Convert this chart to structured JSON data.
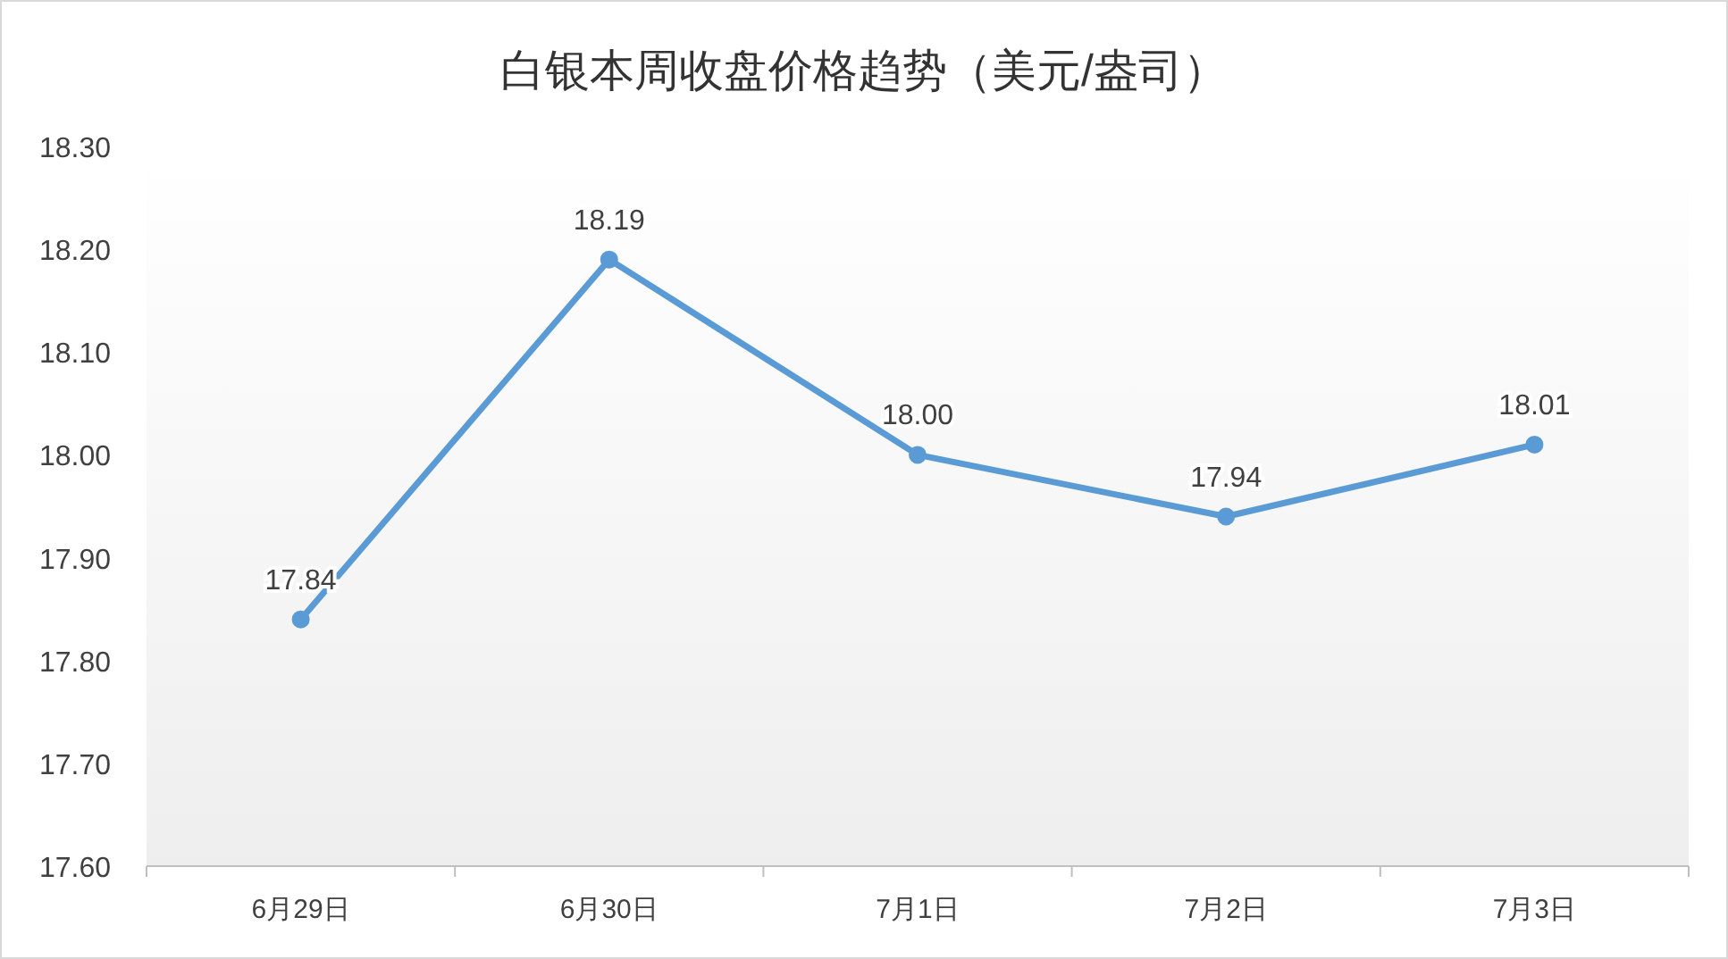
{
  "chart_data": {
    "type": "line",
    "title": "白银本周收盘价格趋势（美元/盎司）",
    "categories": [
      "6月29日",
      "6月30日",
      "7月1日",
      "7月2日",
      "7月3日"
    ],
    "series": [
      {
        "color": "#5b9bd5",
        "values": [
          17.84,
          18.19,
          18.0,
          17.94,
          18.01
        ],
        "value_labels": [
          "17.84",
          "18.19",
          "18.00",
          "17.94",
          "18.01"
        ]
      }
    ],
    "ylim": [
      17.6,
      18.3
    ],
    "yticks": [
      {
        "value": 17.6,
        "label": "17.60"
      },
      {
        "value": 17.7,
        "label": "17.70"
      },
      {
        "value": 17.8,
        "label": "17.80"
      },
      {
        "value": 17.9,
        "label": "17.90"
      },
      {
        "value": 18.0,
        "label": "18.00"
      },
      {
        "value": 18.1,
        "label": "18.10"
      },
      {
        "value": 18.2,
        "label": "18.20"
      },
      {
        "value": 18.3,
        "label": "18.30"
      }
    ],
    "marker": "circle",
    "line_style": "solid"
  }
}
